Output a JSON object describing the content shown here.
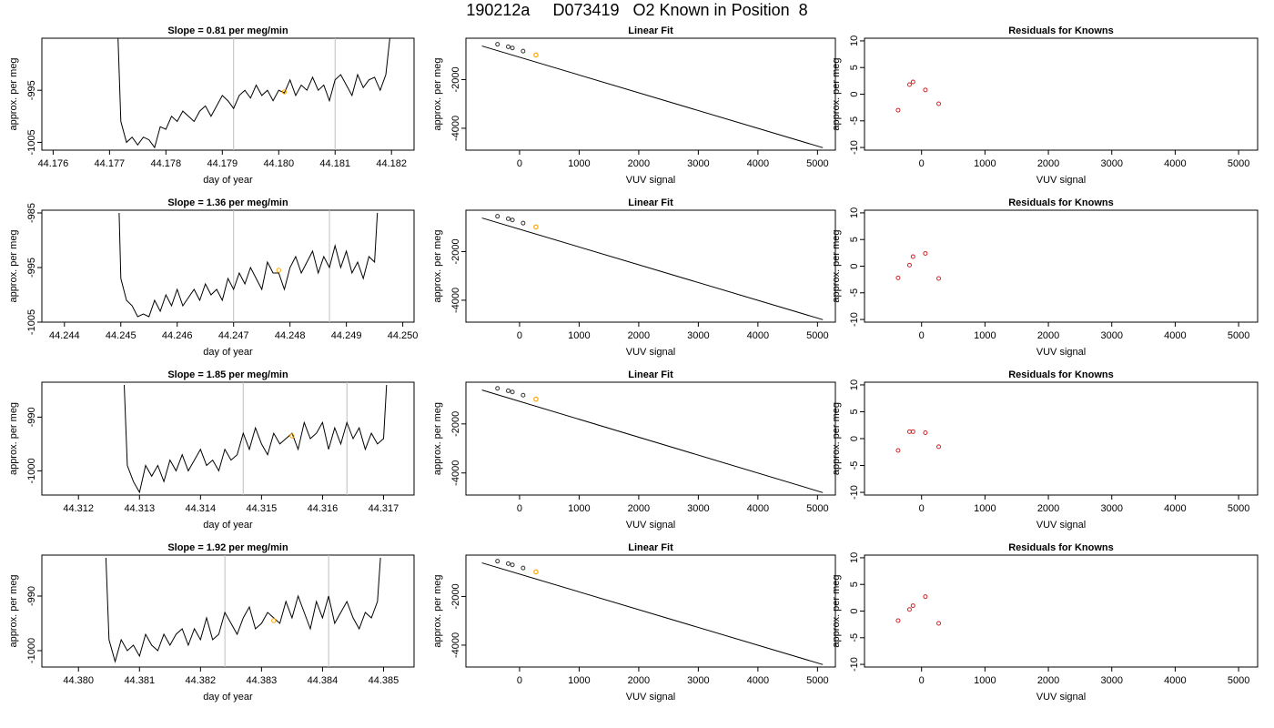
{
  "title": "190212a     D073419   O2 Known in Position  8",
  "colors": {
    "trace": "#000000",
    "vline": "#bebebe",
    "marker": "#ffa500",
    "residual": "#cd2626",
    "axis": "#000000"
  },
  "chart_data": [
    {
      "type": "line",
      "title": "Slope =  0.81  per meg/min",
      "xlabel": "day of year",
      "ylabel": "approx. per meg",
      "xticks": [
        "44.176",
        "44.177",
        "44.178",
        "44.179",
        "44.180",
        "44.181",
        "44.182"
      ],
      "xlim": [
        44.1758,
        44.1824
      ],
      "yticks": [
        "-1005",
        "-995"
      ],
      "ylim": [
        -1006.5,
        -985
      ],
      "vlines": [
        44.1792,
        44.181
      ],
      "marker": {
        "x": 44.1801,
        "y": -995.3
      },
      "x": [
        44.17715,
        44.1772,
        44.1773,
        44.1774,
        44.1775,
        44.1776,
        44.1777,
        44.1778,
        44.1779,
        44.178,
        44.1781,
        44.1782,
        44.1783,
        44.1784,
        44.1785,
        44.1786,
        44.1787,
        44.1788,
        44.1789,
        44.179,
        44.1791,
        44.1792,
        44.1793,
        44.1794,
        44.1795,
        44.1796,
        44.1797,
        44.1798,
        44.1799,
        44.18,
        44.1801,
        44.1802,
        44.1803,
        44.1804,
        44.1805,
        44.1806,
        44.1807,
        44.1808,
        44.1809,
        44.181,
        44.1811,
        44.1812,
        44.1813,
        44.1814,
        44.1815,
        44.1816,
        44.1817,
        44.1818,
        44.1819,
        44.18197
      ],
      "y": [
        -985,
        -1001,
        -1005,
        -1004,
        -1005.5,
        -1004,
        -1004.5,
        -1006,
        -1002,
        -1002.5,
        -1000,
        -1001,
        -999,
        -1000,
        -1001,
        -999,
        -998,
        -1000,
        -998,
        -996,
        -997,
        -998.5,
        -996,
        -995,
        -996.5,
        -994,
        -996,
        -995,
        -997,
        -995,
        -995.5,
        -993,
        -996,
        -994,
        -995,
        -992.5,
        -995,
        -994,
        -997,
        -993,
        -992,
        -994,
        -996,
        -992,
        -994.5,
        -993,
        -992.5,
        -995,
        -992,
        -985
      ]
    },
    {
      "type": "scatter",
      "title": "Linear Fit",
      "xlabel": "VUV signal",
      "ylabel": "approx. per meg",
      "xticks": [
        "0",
        "1000",
        "2000",
        "3000",
        "4000",
        "5000"
      ],
      "xlim": [
        -900,
        5300
      ],
      "yticks": [
        "-2000",
        "-4000"
      ],
      "ylim": [
        -4900,
        -300
      ],
      "line": {
        "x": [
          -630,
          5090
        ],
        "y": [
          -620,
          -4800
        ]
      },
      "points": {
        "x": [
          -370,
          -190,
          -120,
          60
        ],
        "y": [
          -550,
          -650,
          -700,
          -830
        ]
      },
      "marker": {
        "x": 275,
        "y": -990
      }
    },
    {
      "type": "scatter",
      "title": "Residuals for Knowns",
      "xlabel": "VUV signal",
      "ylabel": "approx. per meg",
      "xticks": [
        "0",
        "1000",
        "2000",
        "3000",
        "4000",
        "5000"
      ],
      "xlim": [
        -900,
        5300
      ],
      "yticks": [
        "-10",
        "-5",
        "0",
        "5",
        "10"
      ],
      "ylim": [
        -10.5,
        10.5
      ],
      "points": {
        "x": [
          -370,
          -190,
          -135,
          60,
          270
        ],
        "y": [
          -3.0,
          1.8,
          2.3,
          0.8,
          -1.8
        ]
      }
    },
    {
      "type": "line",
      "title": "Slope =  1.36  per meg/min",
      "xlabel": "day of year",
      "ylabel": "approx. per meg",
      "xticks": [
        "44.244",
        "44.245",
        "44.246",
        "44.247",
        "44.248",
        "44.249",
        "44.250"
      ],
      "xlim": [
        44.2436,
        44.2502
      ],
      "yticks": [
        "-1005",
        "-995",
        "-985"
      ],
      "ylim": [
        -1005,
        -984.5
      ],
      "vlines": [
        44.247,
        44.2487
      ],
      "marker": {
        "x": 44.2478,
        "y": -995.5
      },
      "x": [
        44.24497,
        44.245,
        44.2451,
        44.2452,
        44.2453,
        44.2454,
        44.2455,
        44.2456,
        44.2457,
        44.2458,
        44.2459,
        44.246,
        44.2461,
        44.2462,
        44.2463,
        44.2464,
        44.2465,
        44.2466,
        44.2467,
        44.2468,
        44.2469,
        44.247,
        44.2471,
        44.2472,
        44.2473,
        44.2474,
        44.2475,
        44.2476,
        44.2477,
        44.2478,
        44.2479,
        44.248,
        44.2481,
        44.2482,
        44.2483,
        44.2484,
        44.2485,
        44.2486,
        44.2487,
        44.2488,
        44.2489,
        44.249,
        44.2491,
        44.2492,
        44.2493,
        44.2494,
        44.2495,
        44.24955
      ],
      "y": [
        -985,
        -997,
        -1001,
        -1002,
        -1004,
        -1003.5,
        -1004,
        -1001,
        -1003,
        -1000,
        -1002,
        -999,
        -1002,
        -1000.5,
        -999,
        -1001,
        -998,
        -1000,
        -999,
        -1001,
        -997,
        -999,
        -996,
        -998,
        -995,
        -997,
        -999,
        -994,
        -996,
        -996,
        -999,
        -995,
        -993,
        -996,
        -994,
        -992,
        -996,
        -993,
        -995,
        -991,
        -995,
        -992,
        -996,
        -994,
        -997,
        -993,
        -994,
        -985
      ]
    },
    {
      "type": "scatter",
      "title": "Linear Fit",
      "xlabel": "VUV signal",
      "ylabel": "approx. per meg",
      "xticks": [
        "0",
        "1000",
        "2000",
        "3000",
        "4000",
        "5000"
      ],
      "xlim": [
        -900,
        5300
      ],
      "yticks": [
        "-2000",
        "-4000"
      ],
      "ylim": [
        -4900,
        -300
      ],
      "line": {
        "x": [
          -630,
          5090
        ],
        "y": [
          -620,
          -4800
        ]
      },
      "points": {
        "x": [
          -370,
          -190,
          -120,
          60
        ],
        "y": [
          -550,
          -650,
          -700,
          -830
        ]
      },
      "marker": {
        "x": 275,
        "y": -990
      }
    },
    {
      "type": "scatter",
      "title": "Residuals for Knowns",
      "xlabel": "VUV signal",
      "ylabel": "approx. per meg",
      "xticks": [
        "0",
        "1000",
        "2000",
        "3000",
        "4000",
        "5000"
      ],
      "xlim": [
        -900,
        5300
      ],
      "yticks": [
        "-10",
        "-5",
        "0",
        "5",
        "10"
      ],
      "ylim": [
        -10.5,
        10.5
      ],
      "points": {
        "x": [
          -370,
          -190,
          -135,
          60,
          270
        ],
        "y": [
          -2.2,
          0.2,
          1.8,
          2.4,
          -2.3
        ]
      }
    },
    {
      "type": "line",
      "title": "Slope =  1.85  per meg/min",
      "xlabel": "day of year",
      "ylabel": "approx. per meg",
      "xticks": [
        "44.312",
        "44.313",
        "44.314",
        "44.315",
        "44.316",
        "44.317"
      ],
      "xlim": [
        44.3114,
        44.3175
      ],
      "yticks": [
        "-1000",
        "-990"
      ],
      "ylim": [
        -1004.5,
        -983.5
      ],
      "vlines": [
        44.3147,
        44.3164
      ],
      "marker": {
        "x": 44.3155,
        "y": -993.5
      },
      "x": [
        44.31275,
        44.3128,
        44.3129,
        44.313,
        44.3131,
        44.3132,
        44.3133,
        44.3134,
        44.3135,
        44.3136,
        44.3137,
        44.3138,
        44.3139,
        44.314,
        44.3141,
        44.3142,
        44.3143,
        44.3144,
        44.3145,
        44.3146,
        44.3147,
        44.3148,
        44.3149,
        44.315,
        44.3151,
        44.3152,
        44.3153,
        44.3154,
        44.3155,
        44.3156,
        44.3157,
        44.3158,
        44.3159,
        44.316,
        44.3161,
        44.3162,
        44.3163,
        44.3164,
        44.3165,
        44.3166,
        44.3167,
        44.3168,
        44.3169,
        44.317,
        44.31705
      ],
      "y": [
        -984,
        -999,
        -1002,
        -1004,
        -999,
        -1001,
        -999,
        -1002,
        -998,
        -1000,
        -997,
        -1000,
        -998,
        -996,
        -999,
        -998,
        -1000,
        -996,
        -998,
        -997,
        -993,
        -996,
        -992,
        -995,
        -997,
        -993,
        -995,
        -994,
        -993,
        -996,
        -991,
        -994,
        -993,
        -991,
        -996,
        -992,
        -995,
        -991,
        -994,
        -992,
        -996,
        -993,
        -995,
        -994,
        -984
      ]
    },
    {
      "type": "scatter",
      "title": "Linear Fit",
      "xlabel": "VUV signal",
      "ylabel": "approx. per meg",
      "xticks": [
        "0",
        "1000",
        "2000",
        "3000",
        "4000",
        "5000"
      ],
      "xlim": [
        -900,
        5300
      ],
      "yticks": [
        "-2000",
        "-4000"
      ],
      "ylim": [
        -4900,
        -300
      ],
      "line": {
        "x": [
          -630,
          5090
        ],
        "y": [
          -620,
          -4800
        ]
      },
      "points": {
        "x": [
          -370,
          -190,
          -120,
          60
        ],
        "y": [
          -550,
          -650,
          -700,
          -830
        ]
      },
      "marker": {
        "x": 275,
        "y": -990
      }
    },
    {
      "type": "scatter",
      "title": "Residuals for Knowns",
      "xlabel": "VUV signal",
      "ylabel": "approx. per meg",
      "xticks": [
        "0",
        "1000",
        "2000",
        "3000",
        "4000",
        "5000"
      ],
      "xlim": [
        -900,
        5300
      ],
      "yticks": [
        "-10",
        "-5",
        "0",
        "5",
        "10"
      ],
      "ylim": [
        -10.5,
        10.5
      ],
      "points": {
        "x": [
          -370,
          -190,
          -135,
          60,
          270
        ],
        "y": [
          -2.2,
          1.3,
          1.3,
          1.1,
          -1.5
        ]
      }
    },
    {
      "type": "line",
      "title": "Slope =  1.92  per meg/min",
      "xlabel": "day of year",
      "ylabel": "approx. per meg",
      "xticks": [
        "44.380",
        "44.381",
        "44.382",
        "44.383",
        "44.384",
        "44.385"
      ],
      "xlim": [
        44.3794,
        44.3855
      ],
      "yticks": [
        "-1000",
        "-990"
      ],
      "ylim": [
        -1003,
        -982.5
      ],
      "vlines": [
        44.3824,
        44.3841
      ],
      "marker": {
        "x": 44.3832,
        "y": -994.5
      },
      "x": [
        44.38045,
        44.3805,
        44.3806,
        44.3807,
        44.3808,
        44.3809,
        44.381,
        44.3811,
        44.3812,
        44.3813,
        44.3814,
        44.3815,
        44.3816,
        44.3817,
        44.3818,
        44.3819,
        44.382,
        44.3821,
        44.3822,
        44.3823,
        44.3824,
        44.3825,
        44.3826,
        44.3827,
        44.3828,
        44.3829,
        44.383,
        44.3831,
        44.3832,
        44.3833,
        44.3834,
        44.3835,
        44.3836,
        44.3837,
        44.3838,
        44.3839,
        44.384,
        44.3841,
        44.3842,
        44.3843,
        44.3844,
        44.3845,
        44.3846,
        44.3847,
        44.3848,
        44.3849,
        44.38495
      ],
      "y": [
        -983,
        -998,
        -1002,
        -998,
        -1000,
        -999,
        -1001,
        -997,
        -999,
        -1000,
        -997,
        -999,
        -997,
        -996,
        -999,
        -996,
        -998,
        -994,
        -998,
        -997,
        -993,
        -995,
        -997,
        -994,
        -992,
        -996,
        -995,
        -993,
        -994,
        -995,
        -991,
        -994,
        -990,
        -993,
        -996,
        -991,
        -994,
        -990,
        -995,
        -993,
        -991,
        -994,
        -996,
        -993,
        -994,
        -991,
        -983
      ]
    },
    {
      "type": "scatter",
      "title": "Linear Fit",
      "xlabel": "VUV signal",
      "ylabel": "approx. per meg",
      "xticks": [
        "0",
        "1000",
        "2000",
        "3000",
        "4000",
        "5000"
      ],
      "xlim": [
        -900,
        5300
      ],
      "yticks": [
        "-2000",
        "-4000"
      ],
      "ylim": [
        -4900,
        -300
      ],
      "line": {
        "x": [
          -630,
          5090
        ],
        "y": [
          -620,
          -4800
        ]
      },
      "points": {
        "x": [
          -370,
          -190,
          -120,
          60
        ],
        "y": [
          -550,
          -650,
          -700,
          -830
        ]
      },
      "marker": {
        "x": 275,
        "y": -990
      }
    },
    {
      "type": "scatter",
      "title": "Residuals for Knowns",
      "xlabel": "VUV signal",
      "ylabel": "approx. per meg",
      "xticks": [
        "0",
        "1000",
        "2000",
        "3000",
        "4000",
        "5000"
      ],
      "xlim": [
        -900,
        5300
      ],
      "yticks": [
        "-10",
        "-5",
        "0",
        "5",
        "10"
      ],
      "ylim": [
        -10.5,
        10.5
      ],
      "points": {
        "x": [
          -370,
          -190,
          -135,
          60,
          270
        ],
        "y": [
          -1.8,
          0.3,
          1.0,
          2.7,
          -2.3
        ]
      }
    }
  ]
}
